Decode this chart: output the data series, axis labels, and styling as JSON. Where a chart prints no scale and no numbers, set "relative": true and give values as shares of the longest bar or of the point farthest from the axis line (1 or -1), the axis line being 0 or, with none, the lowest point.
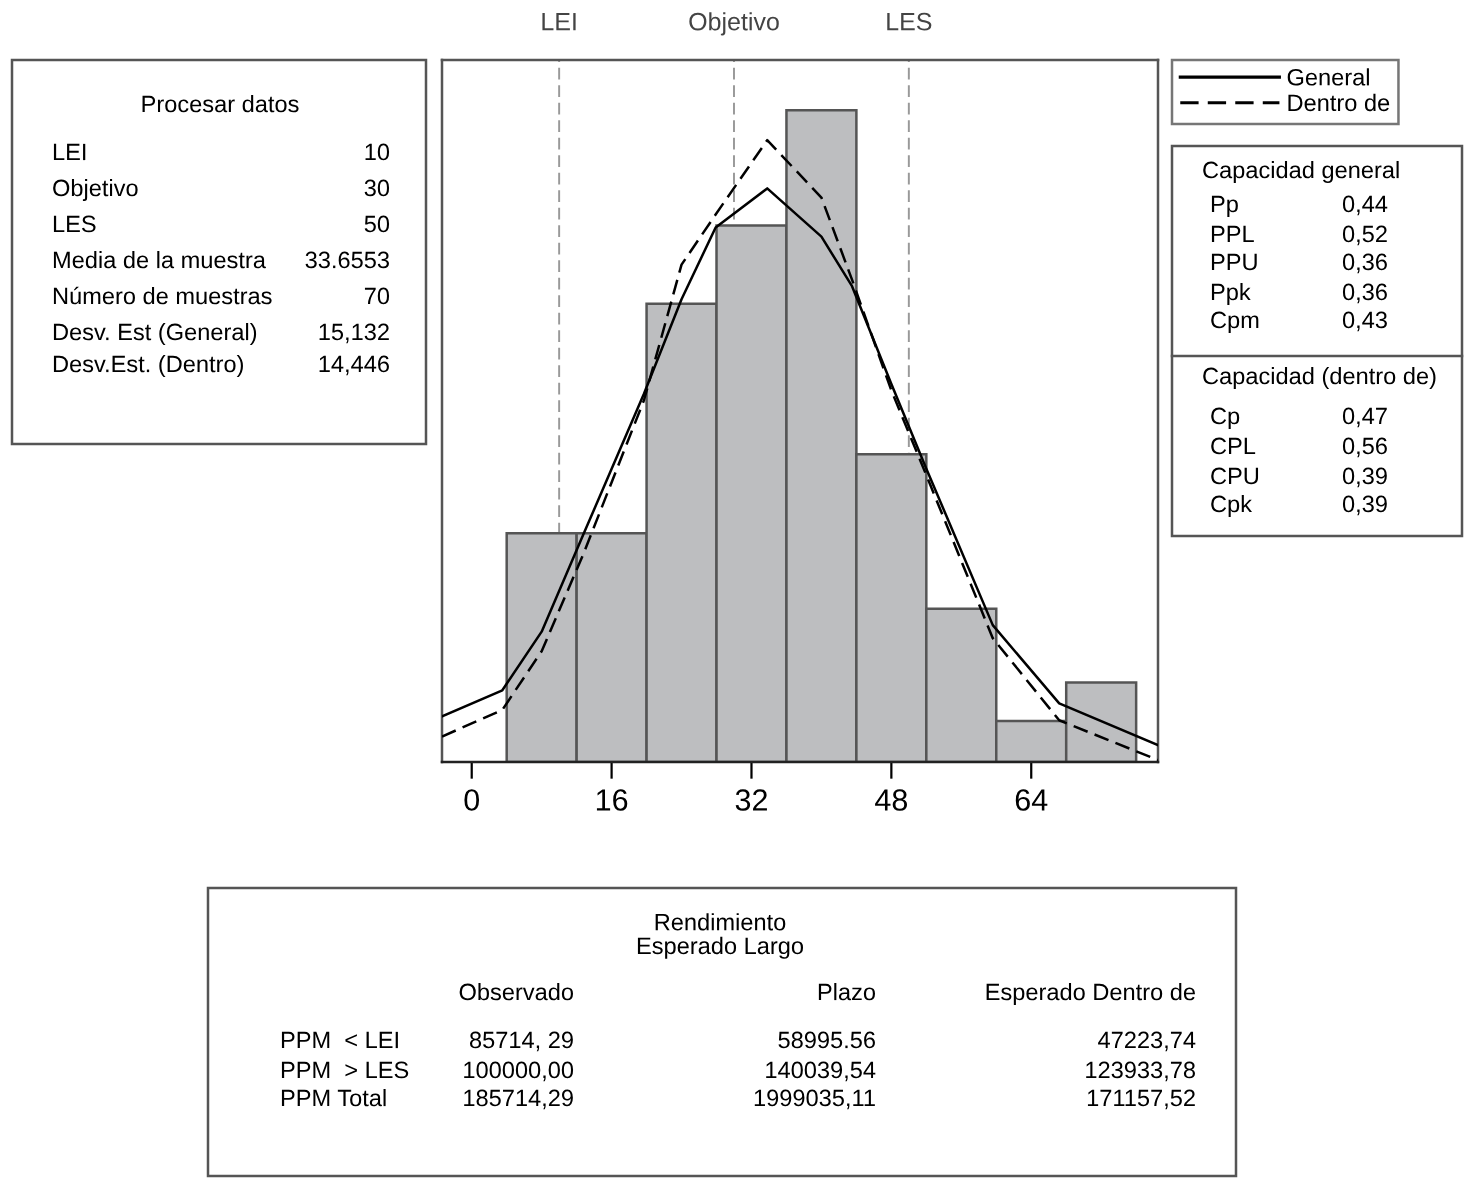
{
  "chart_data": {
    "type": "histogram",
    "relative": true,
    "bins": [
      4,
      12,
      20,
      28,
      36,
      44,
      52,
      60,
      68,
      76
    ],
    "values": [
      0.351,
      0.351,
      0.703,
      0.823,
      1,
      0.472,
      0.235,
      0.063,
      0.122
    ],
    "color": "#bdbec0",
    "xlim": [
      -3.4,
      78.5
    ],
    "xticks": [
      0,
      16,
      32,
      48,
      64
    ],
    "series": [
      {
        "name": "General",
        "type": "line",
        "line_style": "solid",
        "color": "#000000",
        "x": [
          -3.4,
          3.5,
          8,
          12.8,
          19.7,
          24,
          27.9,
          33.8,
          40,
          43.5,
          48,
          52,
          59.6,
          67.2,
          78.5
        ],
        "values": [
          0.07,
          0.11,
          0.2,
          0.35,
          0.565,
          0.71,
          0.82,
          0.88,
          0.806,
          0.73,
          0.58,
          0.45,
          0.21,
          0.09,
          0.026
        ]
      },
      {
        "name": "Dentro de",
        "type": "line",
        "line_style": "dashed",
        "color": "#000000",
        "x": [
          -3.4,
          3.5,
          8,
          12.8,
          19.7,
          24,
          27.9,
          33.8,
          40,
          43.5,
          48,
          52,
          59.6,
          67.2,
          78.5
        ],
        "values": [
          0.039,
          0.08,
          0.17,
          0.32,
          0.555,
          0.763,
          0.84,
          0.954,
          0.866,
          0.74,
          0.57,
          0.44,
          0.19,
          0.064,
          0.003
        ]
      }
    ],
    "legend": "right",
    "ref_lines": [
      {
        "axis": "x",
        "value": 10,
        "label": "LEI",
        "color": "#999999",
        "line_style": "dashed"
      },
      {
        "axis": "x",
        "value": 30,
        "label": "Objetivo",
        "color": "#999999",
        "line_style": "dashed"
      },
      {
        "axis": "x",
        "value": 50,
        "label": "LES",
        "color": "#999999",
        "line_style": "dashed"
      }
    ],
    "annotations": [
      "Procesar datos",
      "LEI\t10",
      "Objetivo\t30",
      "LES\t50",
      "Media de la muestra\t33.6553",
      "Número de muestras\t70",
      "Desv. Est (General)\t15,132",
      "Desv.Est. (Dentro)\t14,446",
      "Capacidad general",
      "Pp\t0,44",
      "PPL\t0,52",
      "PPU\t0,36",
      "Ppk\t0,36",
      "Cpm\t0,43",
      "Capacidad (dentro de)",
      "Cp\t0,47",
      "CPL\t0,56",
      "CPU\t0,39",
      "Cpk\t0,39",
      "Rendimiento\nEsperado Largo",
      "\tObservado\tPlazo\tEsperado Dentro de",
      "PPM  < LEI\t85714, 29\t58995.56\t47223,74",
      "PPM  > LES\t100000,00\t140039,54\t123933,78",
      "PPM Total\t185714,29\t1999035,11\t171157,52"
    ]
  }
}
